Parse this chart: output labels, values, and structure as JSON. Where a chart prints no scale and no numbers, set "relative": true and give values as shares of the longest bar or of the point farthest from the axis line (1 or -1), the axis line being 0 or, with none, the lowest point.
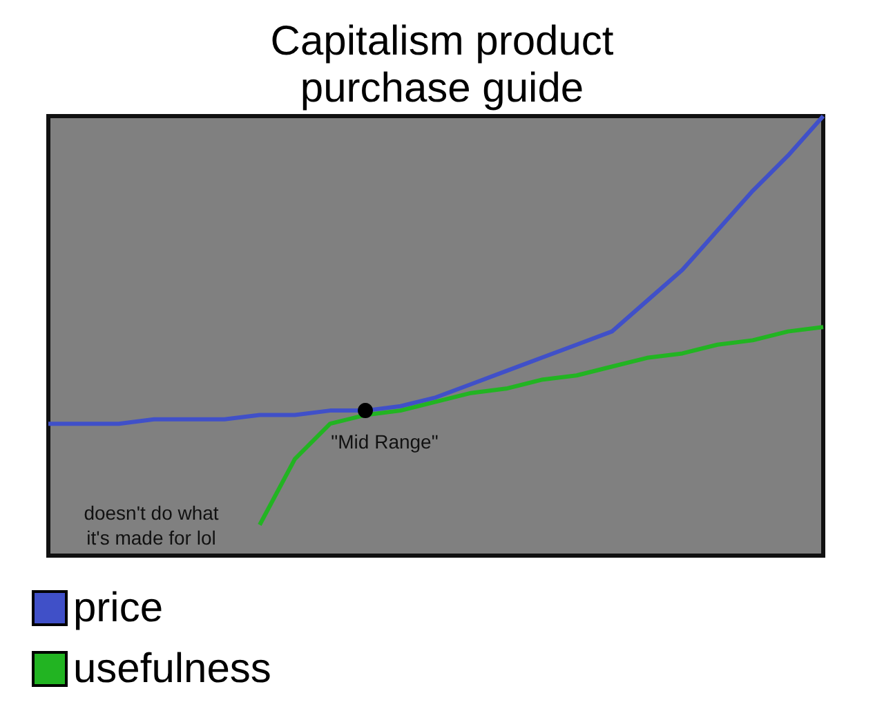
{
  "chart_data": {
    "type": "line",
    "title": "Capitalism product\npurchase guide",
    "relative": true,
    "grid": false,
    "legend": "bottom left",
    "marker": "none",
    "line_style": "solid",
    "categories": [
      null,
      null,
      null,
      null,
      null,
      null,
      null,
      null,
      null,
      null,
      null,
      null,
      null,
      null,
      null,
      null,
      null,
      null,
      null,
      null,
      null,
      null,
      null
    ],
    "series": [
      {
        "name": "price",
        "color": "#4050c8",
        "values": [
          0.3,
          0.3,
          0.3,
          0.31,
          0.31,
          0.31,
          0.32,
          0.32,
          0.33,
          0.33,
          0.34,
          0.36,
          0.39,
          0.42,
          0.45,
          0.48,
          0.51,
          0.58,
          0.65,
          0.74,
          0.83,
          0.91,
          1
        ]
      },
      {
        "name": "usefulness",
        "color": "#22b422",
        "values": [
          null,
          null,
          null,
          null,
          null,
          null,
          0.07,
          0.22,
          0.3,
          0.32,
          0.33,
          0.35,
          0.37,
          0.38,
          0.4,
          0.41,
          0.43,
          0.45,
          0.46,
          0.48,
          0.49,
          0.51,
          0.52
        ]
      }
    ],
    "annotations": [
      "\"Mid Range\"",
      "doesn't do what\nit's made for lol"
    ]
  }
}
